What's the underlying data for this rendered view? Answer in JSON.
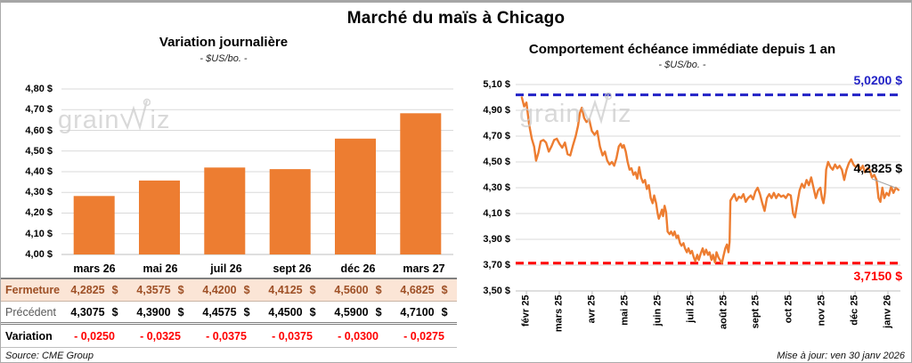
{
  "page": {
    "title": "Marché du maïs à Chicago",
    "source_note": "Source: CME Group",
    "updated_note": "Mise à jour: ven 30 janv 2026",
    "watermark_left": "grain",
    "watermark_right": "iz"
  },
  "colors": {
    "orange": "#ED7D31",
    "blue": "#2222C6",
    "red": "#FF0000",
    "peach": "#FBE5D6",
    "brown": "#9E5026",
    "grid": "#D9D9D9",
    "axis": "#BFBFBF",
    "leader": "#A6A6A6"
  },
  "chart_data": [
    {
      "type": "bar",
      "title": "Variation journalière",
      "subtitle": "- $US/bo. -",
      "categories": [
        "mars 26",
        "mai 26",
        "juil 26",
        "sept 26",
        "déc 26",
        "mars 27"
      ],
      "values": [
        4.2825,
        4.3575,
        4.42,
        4.4125,
        4.56,
        4.6825
      ],
      "ylim": [
        4.0,
        4.8
      ],
      "yticks": [
        4.8,
        4.7,
        4.6,
        4.5,
        4.4,
        4.3,
        4.2,
        4.1,
        4.0
      ],
      "ytick_labels": [
        "4,80 $",
        "4,70 $",
        "4,60 $",
        "4,50 $",
        "4,40 $",
        "4,30 $",
        "4,20 $",
        "4,10 $",
        "4,00 $"
      ],
      "grid": true,
      "bar_color": "#ED7D31"
    },
    {
      "type": "line",
      "title": "Comportement échéance immédiate depuis 1 an",
      "subtitle": "- $US/bo. -",
      "ylim": [
        3.5,
        5.1
      ],
      "yticks": [
        5.1,
        4.9,
        4.7,
        4.5,
        4.3,
        4.1,
        3.9,
        3.7,
        3.5
      ],
      "ytick_labels": [
        "5,10 $",
        "4,90 $",
        "4,70 $",
        "4,50 $",
        "4,30 $",
        "4,10 $",
        "3,90 $",
        "3,70 $",
        "3,50 $"
      ],
      "x_tick_labels": [
        "févr 25",
        "mars 25",
        "avr 25",
        "mai 25",
        "juin 25",
        "juil 25",
        "août 25",
        "sept 25",
        "oct 25",
        "nov 25",
        "déc 25",
        "janv 26"
      ],
      "grid": true,
      "line_color": "#ED7D31",
      "ref_lines": [
        {
          "value": 5.02,
          "label": "5,0200 $",
          "color": "#2222C6",
          "style": "dashed"
        },
        {
          "value": 3.715,
          "label": "3,7150 $",
          "color": "#FF0000",
          "style": "dashed"
        }
      ],
      "last_point": {
        "value": 4.2825,
        "label": "4,2825 $"
      },
      "points": [
        [
          0.016,
          5.0
        ],
        [
          0.022,
          4.93
        ],
        [
          0.028,
          4.96
        ],
        [
          0.035,
          4.79
        ],
        [
          0.042,
          4.68
        ],
        [
          0.048,
          4.62
        ],
        [
          0.053,
          4.51
        ],
        [
          0.059,
          4.57
        ],
        [
          0.065,
          4.66
        ],
        [
          0.072,
          4.67
        ],
        [
          0.079,
          4.65
        ],
        [
          0.086,
          4.58
        ],
        [
          0.093,
          4.62
        ],
        [
          0.1,
          4.67
        ],
        [
          0.107,
          4.68
        ],
        [
          0.114,
          4.64
        ],
        [
          0.121,
          4.61
        ],
        [
          0.128,
          4.65
        ],
        [
          0.135,
          4.56
        ],
        [
          0.142,
          4.55
        ],
        [
          0.149,
          4.63
        ],
        [
          0.156,
          4.7
        ],
        [
          0.162,
          4.78
        ],
        [
          0.167,
          4.88
        ],
        [
          0.172,
          4.92
        ],
        [
          0.178,
          4.84
        ],
        [
          0.184,
          4.81
        ],
        [
          0.191,
          4.83
        ],
        [
          0.198,
          4.74
        ],
        [
          0.205,
          4.71
        ],
        [
          0.212,
          4.74
        ],
        [
          0.219,
          4.62
        ],
        [
          0.226,
          4.55
        ],
        [
          0.232,
          4.58
        ],
        [
          0.238,
          4.51
        ],
        [
          0.244,
          4.48
        ],
        [
          0.25,
          4.5
        ],
        [
          0.256,
          4.47
        ],
        [
          0.262,
          4.53
        ],
        [
          0.268,
          4.62
        ],
        [
          0.273,
          4.64
        ],
        [
          0.277,
          4.61
        ],
        [
          0.281,
          4.63
        ],
        [
          0.286,
          4.58
        ],
        [
          0.291,
          4.5
        ],
        [
          0.296,
          4.44
        ],
        [
          0.301,
          4.45
        ],
        [
          0.306,
          4.4
        ],
        [
          0.311,
          4.42
        ],
        [
          0.316,
          4.37
        ],
        [
          0.321,
          4.46
        ],
        [
          0.326,
          4.38
        ],
        [
          0.331,
          4.34
        ],
        [
          0.336,
          4.36
        ],
        [
          0.341,
          4.29
        ],
        [
          0.346,
          4.32
        ],
        [
          0.351,
          4.22
        ],
        [
          0.356,
          4.18
        ],
        [
          0.36,
          4.24
        ],
        [
          0.365,
          4.18
        ],
        [
          0.369,
          4.1
        ],
        [
          0.372,
          4.06
        ],
        [
          0.376,
          4.09
        ],
        [
          0.38,
          4.13
        ],
        [
          0.383,
          4.08
        ],
        [
          0.387,
          4.16
        ],
        [
          0.391,
          4.11
        ],
        [
          0.395,
          3.96
        ],
        [
          0.4,
          3.94
        ],
        [
          0.404,
          3.96
        ],
        [
          0.409,
          3.93
        ],
        [
          0.413,
          3.96
        ],
        [
          0.418,
          3.91
        ],
        [
          0.422,
          3.93
        ],
        [
          0.427,
          3.87
        ],
        [
          0.431,
          3.85
        ],
        [
          0.436,
          3.87
        ],
        [
          0.44,
          3.83
        ],
        [
          0.445,
          3.8
        ],
        [
          0.449,
          3.83
        ],
        [
          0.454,
          3.79
        ],
        [
          0.458,
          3.81
        ],
        [
          0.463,
          3.76
        ],
        [
          0.467,
          3.73
        ],
        [
          0.472,
          3.78
        ],
        [
          0.476,
          3.74
        ],
        [
          0.481,
          3.79
        ],
        [
          0.486,
          3.83
        ],
        [
          0.49,
          3.78
        ],
        [
          0.495,
          3.82
        ],
        [
          0.5,
          3.78
        ],
        [
          0.504,
          3.8
        ],
        [
          0.509,
          3.74
        ],
        [
          0.513,
          3.78
        ],
        [
          0.518,
          3.72
        ],
        [
          0.522,
          3.8
        ],
        [
          0.527,
          3.76
        ],
        [
          0.531,
          3.74
        ],
        [
          0.536,
          3.715
        ],
        [
          0.54,
          3.77
        ],
        [
          0.545,
          3.83
        ],
        [
          0.549,
          3.86
        ],
        [
          0.553,
          3.8
        ],
        [
          0.556,
          3.88
        ],
        [
          0.558,
          4.2
        ],
        [
          0.562,
          4.22
        ],
        [
          0.568,
          4.25
        ],
        [
          0.574,
          4.2
        ],
        [
          0.58,
          4.23
        ],
        [
          0.586,
          4.22
        ],
        [
          0.592,
          4.25
        ],
        [
          0.598,
          4.19
        ],
        [
          0.604,
          4.22
        ],
        [
          0.611,
          4.24
        ],
        [
          0.617,
          4.21
        ],
        [
          0.623,
          4.27
        ],
        [
          0.629,
          4.3
        ],
        [
          0.635,
          4.25
        ],
        [
          0.641,
          4.18
        ],
        [
          0.647,
          4.12
        ],
        [
          0.653,
          4.22
        ],
        [
          0.659,
          4.25
        ],
        [
          0.665,
          4.22
        ],
        [
          0.671,
          4.26
        ],
        [
          0.677,
          4.22
        ],
        [
          0.683,
          4.25
        ],
        [
          0.69,
          4.23
        ],
        [
          0.696,
          4.24
        ],
        [
          0.702,
          4.22
        ],
        [
          0.708,
          4.25
        ],
        [
          0.715,
          4.24
        ],
        [
          0.721,
          4.1
        ],
        [
          0.726,
          4.07
        ],
        [
          0.732,
          4.18
        ],
        [
          0.738,
          4.28
        ],
        [
          0.744,
          4.33
        ],
        [
          0.75,
          4.3
        ],
        [
          0.756,
          4.36
        ],
        [
          0.762,
          4.32
        ],
        [
          0.768,
          4.38
        ],
        [
          0.774,
          4.3
        ],
        [
          0.78,
          4.22
        ],
        [
          0.786,
          4.28
        ],
        [
          0.792,
          4.3
        ],
        [
          0.796,
          4.22
        ],
        [
          0.8,
          4.18
        ],
        [
          0.804,
          4.26
        ],
        [
          0.807,
          4.44
        ],
        [
          0.812,
          4.5
        ],
        [
          0.818,
          4.46
        ],
        [
          0.824,
          4.44
        ],
        [
          0.83,
          4.48
        ],
        [
          0.836,
          4.45
        ],
        [
          0.842,
          4.47
        ],
        [
          0.848,
          4.44
        ],
        [
          0.854,
          4.36
        ],
        [
          0.86,
          4.44
        ],
        [
          0.866,
          4.49
        ],
        [
          0.872,
          4.52
        ],
        [
          0.878,
          4.48
        ],
        [
          0.884,
          4.46
        ],
        [
          0.89,
          4.48
        ],
        [
          0.896,
          4.44
        ],
        [
          0.902,
          4.47
        ],
        [
          0.908,
          4.42
        ],
        [
          0.914,
          4.45
        ],
        [
          0.92,
          4.44
        ],
        [
          0.926,
          4.38
        ],
        [
          0.932,
          4.4
        ],
        [
          0.938,
          4.36
        ],
        [
          0.943,
          4.22
        ],
        [
          0.948,
          4.19
        ],
        [
          0.953,
          4.3
        ],
        [
          0.958,
          4.22
        ],
        [
          0.964,
          4.26
        ],
        [
          0.97,
          4.24
        ],
        [
          0.976,
          4.31
        ],
        [
          0.982,
          4.26
        ],
        [
          0.988,
          4.3
        ],
        [
          0.995,
          4.2825
        ]
      ]
    }
  ],
  "table": {
    "columns": [
      "mars 26",
      "mai 26",
      "juil 26",
      "sept 26",
      "déc 26",
      "mars 27"
    ],
    "rows": [
      {
        "label": "Fermeture",
        "unit": "$",
        "kind": "close",
        "cells": [
          "4,2825",
          "4,3575",
          "4,4200",
          "4,4125",
          "4,5600",
          "4,6825"
        ]
      },
      {
        "label": "Précédent",
        "unit": "$",
        "kind": "previous",
        "cells": [
          "4,3075",
          "4,3900",
          "4,4575",
          "4,4500",
          "4,5900",
          "4,7100"
        ]
      },
      {
        "label": "Variation",
        "unit": "",
        "kind": "variation",
        "cells": [
          "- 0,0250",
          "- 0,0325",
          "- 0,0375",
          "- 0,0375",
          "- 0,0300",
          "- 0,0275"
        ]
      }
    ]
  }
}
